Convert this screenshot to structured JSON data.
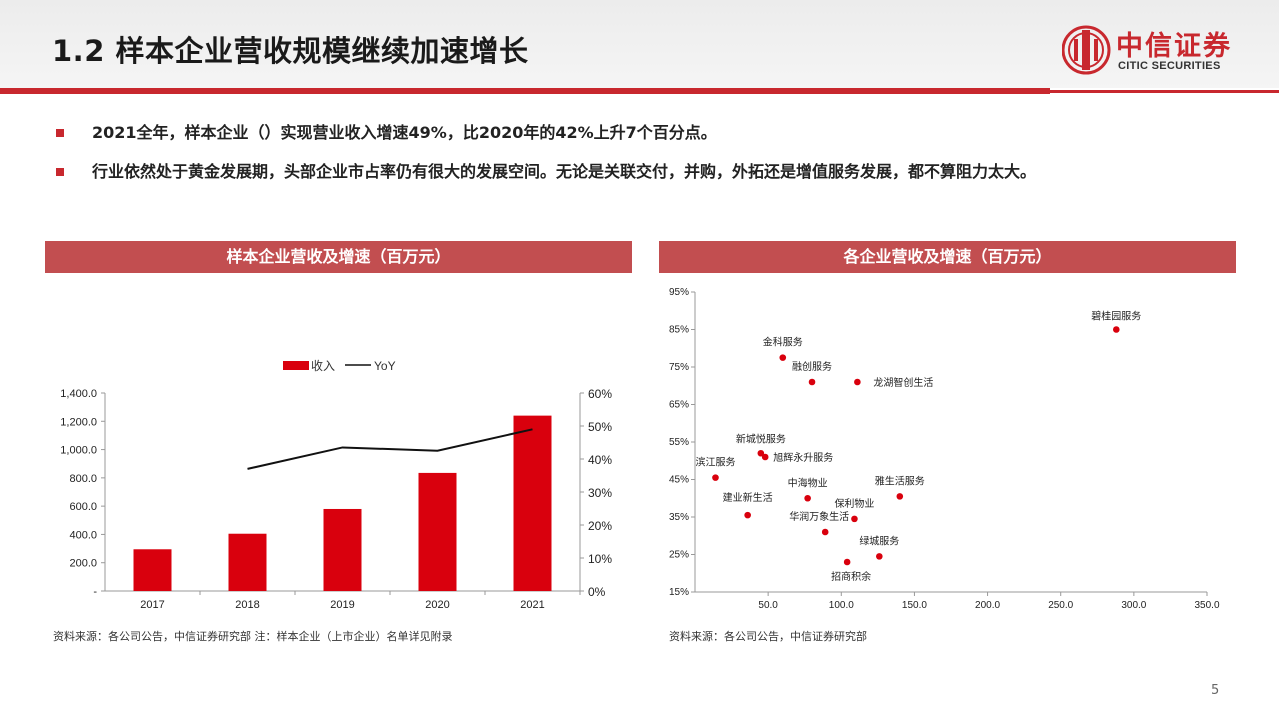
{
  "header": {
    "title": "1.2 样本企业营收规模继续加速增长",
    "logo_cn": "中信证券",
    "logo_en": "CITIC SECURITIES"
  },
  "bullets": [
    "2021全年，样本企业（）实现营业收入增速49%，比2020年的42%上升7个百分点。",
    "行业依然处于黄金发展期，头部企业市占率仍有很大的发展空间。无论是关联交付，并购，外拓还是增值服务发展，都不算阻力太大。"
  ],
  "left_panel": {
    "header": "样本企业营收及增速（百万元）",
    "source": "资料来源：各公司公告，中信证券研究部 注：样本企业（上市企业）名单详见附录"
  },
  "right_panel": {
    "header": "各企业营收及增速（百万元）",
    "source": "资料来源：各公司公告，中信证券研究部"
  },
  "page_number": "5",
  "colors": {
    "accent": "#c8282e",
    "bar": "#d9000d",
    "panel_header": "#c24e50"
  },
  "chart_data": [
    {
      "type": "bar",
      "categories": [
        "2017",
        "2018",
        "2019",
        "2020",
        "2021"
      ],
      "series": [
        {
          "name": "收入",
          "type": "bar",
          "axis": "left",
          "values": [
            295,
            405,
            580,
            835,
            1240
          ]
        },
        {
          "name": "YoY",
          "type": "line",
          "axis": "right",
          "values": [
            null,
            0.37,
            0.435,
            0.425,
            0.49
          ]
        }
      ],
      "y_left": {
        "min": 0,
        "max": 1400,
        "ticks": [
          0,
          200,
          400,
          600,
          800,
          1000,
          1200,
          1400
        ],
        "tick_labels": [
          "-",
          "200.0",
          "400.0",
          "600.0",
          "800.0",
          "1,000.0",
          "1,200.0",
          "1,400.0"
        ]
      },
      "y_right": {
        "min": 0,
        "max": 0.6,
        "ticks": [
          0,
          0.1,
          0.2,
          0.3,
          0.4,
          0.5,
          0.6
        ],
        "tick_labels": [
          "0%",
          "10%",
          "20%",
          "30%",
          "40%",
          "50%",
          "60%"
        ]
      },
      "legend": {
        "position": "top-center",
        "entries": [
          "收入",
          "YoY"
        ]
      },
      "grid": false
    },
    {
      "type": "scatter",
      "points": [
        {
          "label": "碧桂园服务",
          "x": 288,
          "y": 0.85
        },
        {
          "label": "金科服务",
          "x": 60,
          "y": 0.775
        },
        {
          "label": "融创服务",
          "x": 80,
          "y": 0.71
        },
        {
          "label": "龙湖智创生活",
          "x": 111,
          "y": 0.71
        },
        {
          "label": "新城悦服务",
          "x": 45,
          "y": 0.52
        },
        {
          "label": "旭辉永升服务",
          "x": 48,
          "y": 0.51
        },
        {
          "label": "滨江服务",
          "x": 14,
          "y": 0.455
        },
        {
          "label": "中海物业",
          "x": 77,
          "y": 0.4
        },
        {
          "label": "雅生活服务",
          "x": 140,
          "y": 0.405
        },
        {
          "label": "建业新生活",
          "x": 36,
          "y": 0.355
        },
        {
          "label": "保利物业",
          "x": 109,
          "y": 0.345
        },
        {
          "label": "华润万象生活",
          "x": 89,
          "y": 0.31
        },
        {
          "label": "绿城服务",
          "x": 126,
          "y": 0.245
        },
        {
          "label": "招商积余",
          "x": 104,
          "y": 0.23
        }
      ],
      "x_axis": {
        "min": 0,
        "max": 350,
        "ticks": [
          50,
          100,
          150,
          200,
          250,
          300,
          350
        ],
        "tick_labels": [
          "50.0",
          "100.0",
          "150.0",
          "200.0",
          "250.0",
          "300.0",
          "350.0"
        ]
      },
      "y_axis": {
        "min": 0.15,
        "max": 0.95,
        "ticks": [
          0.15,
          0.25,
          0.35,
          0.45,
          0.55,
          0.65,
          0.75,
          0.85,
          0.95
        ],
        "tick_labels": [
          "15%",
          "25%",
          "35%",
          "45%",
          "55%",
          "65%",
          "75%",
          "85%",
          "95%"
        ]
      },
      "grid": false
    }
  ]
}
